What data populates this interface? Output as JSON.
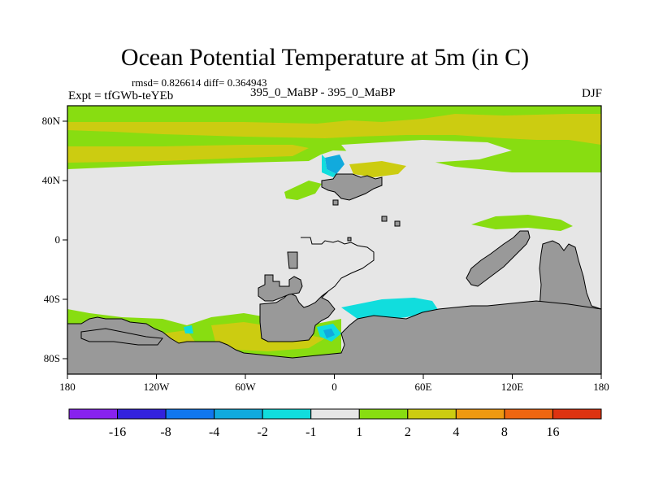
{
  "header": {
    "title": "Ocean Potential Temperature at 5m (in C)",
    "stats": "rmsd= 0.826614  diff= 0.364943",
    "experiment": "Expt = tfGWb-teYEb",
    "subtitle": "395_0_MaBP - 395_0_MaBP",
    "season": "DJF"
  },
  "map": {
    "lon_ticks": [
      "180",
      "120W",
      "60W",
      "0",
      "60E",
      "120E",
      "180"
    ],
    "lat_ticks": [
      "80N",
      "40N",
      "0",
      "40S",
      "80S"
    ],
    "colors": {
      "land": "#999999",
      "neutral": "#e6e6e6",
      "warm_2": "#88dd11",
      "warm_4": "#cccc11",
      "cool_2": "#11dddd",
      "cool_4": "#11aadd"
    }
  },
  "colorbar": {
    "labels": [
      "-16",
      "-8",
      "-4",
      "-2",
      "-1",
      "1",
      "2",
      "4",
      "8",
      "16"
    ],
    "colors": [
      "#8822ee",
      "#3322dd",
      "#1177ee",
      "#11aadd",
      "#11dddd",
      "#e6e6e6",
      "#88dd11",
      "#cccc11",
      "#ee9911",
      "#ee6611",
      "#dd3311"
    ]
  }
}
